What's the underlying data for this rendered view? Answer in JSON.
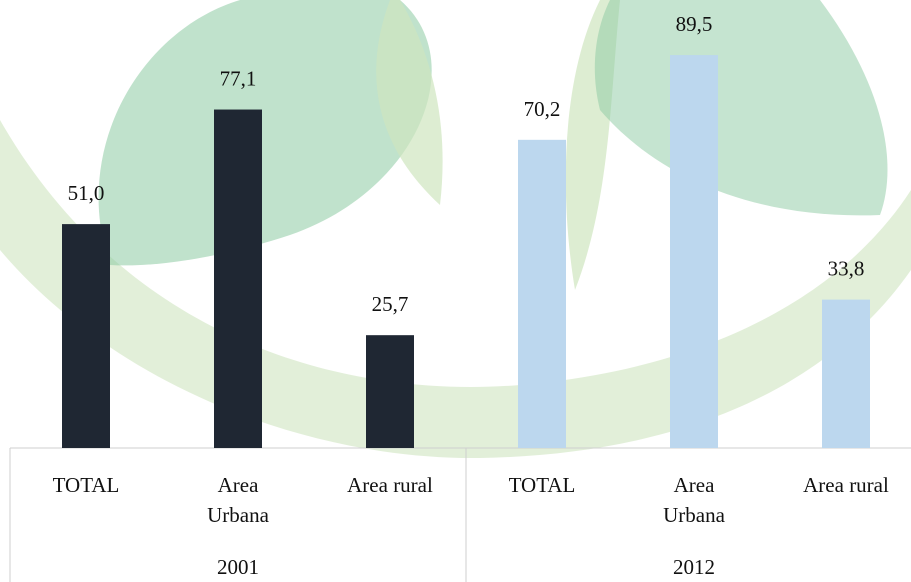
{
  "chart_data": {
    "type": "bar",
    "groups": [
      {
        "label": "2001",
        "categories": [
          "TOTAL",
          "Area Urbana",
          "Area rural"
        ],
        "values": [
          51.0,
          77.1,
          25.7
        ],
        "value_labels": [
          "51,0",
          "77,1",
          "25,7"
        ],
        "color": "#1f2733"
      },
      {
        "label": "2012",
        "categories": [
          "TOTAL",
          "Area Urbana",
          "Area rural"
        ],
        "values": [
          70.2,
          89.5,
          33.8
        ],
        "value_labels": [
          "70,2",
          "89,5",
          "33,8"
        ],
        "color": "#bcd7ee"
      }
    ]
  }
}
